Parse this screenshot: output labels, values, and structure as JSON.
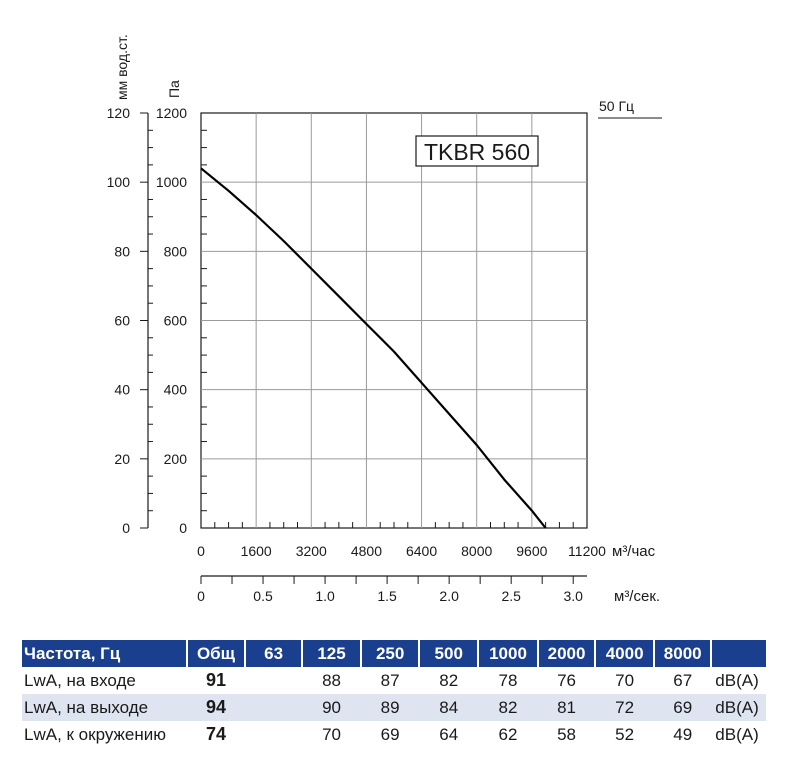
{
  "chart_data": {
    "type": "line",
    "model": "TKBR 560",
    "frequency_label": "50 Гц",
    "y_left_unit": "мм вод.ст.",
    "y_left_ticks": [
      "0",
      "20",
      "40",
      "60",
      "80",
      "100",
      "120"
    ],
    "y_pa_unit": "Па",
    "y_pa_ticks": [
      "0",
      "200",
      "400",
      "600",
      "800",
      "1000",
      "1200"
    ],
    "ylim": [
      0,
      1200
    ],
    "x_hour_unit": "м³/час",
    "x_hour_ticks": [
      "0",
      "1600",
      "3200",
      "4800",
      "6400",
      "8000",
      "9600",
      "11200"
    ],
    "xlim": [
      0,
      11200
    ],
    "x_sec_unit": "м³/сек.",
    "x_sec_ticks": [
      "0",
      "0.5",
      "1.0",
      "1.5",
      "2.0",
      "2.5",
      "3.0"
    ],
    "grid": true,
    "series": [
      {
        "x": [
          0,
          800,
          1600,
          2400,
          3200,
          4000,
          4800,
          5600,
          6400,
          7200,
          8000,
          8800,
          9600,
          10000
        ],
        "y": [
          1040,
          975,
          905,
          830,
          750,
          670,
          590,
          510,
          420,
          330,
          240,
          140,
          50,
          0
        ]
      }
    ]
  },
  "table": {
    "header": [
      "Частота, Гц",
      "Общ",
      "63",
      "125",
      "250",
      "500",
      "1000",
      "2000",
      "4000",
      "8000",
      ""
    ],
    "rows": [
      {
        "label": "LwA, на входе",
        "total": "91",
        "values": [
          "",
          "88",
          "87",
          "82",
          "78",
          "76",
          "70",
          "67"
        ],
        "unit": "dB(A)"
      },
      {
        "label": "LwA, на выходе",
        "total": "94",
        "values": [
          "",
          "90",
          "89",
          "84",
          "82",
          "81",
          "72",
          "69"
        ],
        "unit": "dB(A)"
      },
      {
        "label": "LwA, к окружению",
        "total": "74",
        "values": [
          "",
          "70",
          "69",
          "64",
          "62",
          "58",
          "52",
          "49"
        ],
        "unit": "dB(A)"
      }
    ]
  }
}
